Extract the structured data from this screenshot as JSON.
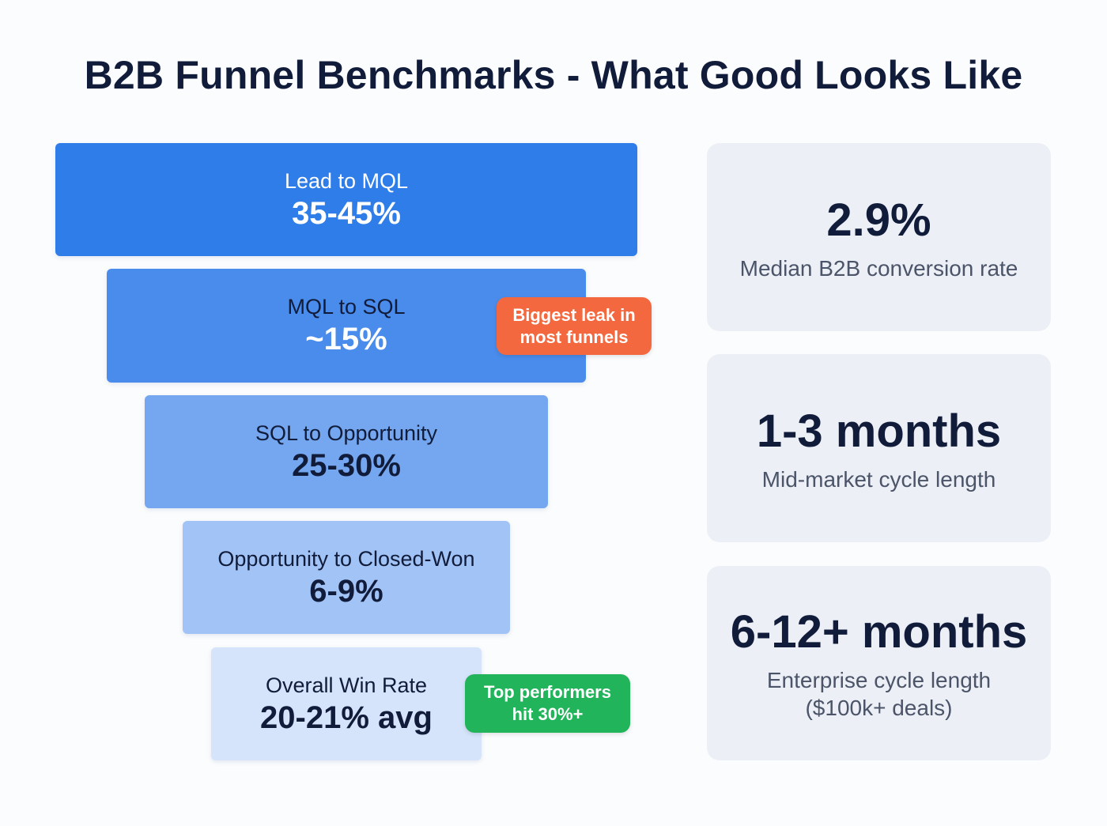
{
  "title": "B2B Funnel Benchmarks - What Good Looks Like",
  "funnel": [
    {
      "label": "Lead to MQL",
      "value": "35-45%",
      "color": "#2f7de8"
    },
    {
      "label": "MQL to SQL",
      "value": "~15%",
      "color": "#4a8cec"
    },
    {
      "label": "SQL to Opportunity",
      "value": "25-30%",
      "color": "#74a7f0"
    },
    {
      "label": "Opportunity to Closed-Won",
      "value": "6-9%",
      "color": "#a2c3f5"
    },
    {
      "label": "Overall Win Rate",
      "value": "20-21% avg",
      "color": "#d5e4fb"
    }
  ],
  "badges": {
    "leak": {
      "line1": "Biggest leak in",
      "line2": "most funnels",
      "color": "#f4683f"
    },
    "top": {
      "line1": "Top performers",
      "line2": "hit 30%+",
      "color": "#22b45a"
    }
  },
  "stats": [
    {
      "value": "2.9%",
      "caption": "Median B2B conversion rate"
    },
    {
      "value": "1-3 months",
      "caption": "Mid-market cycle length"
    },
    {
      "value": "6-12+ months",
      "caption": "Enterprise cycle length",
      "caption2": "($100k+ deals)"
    }
  ]
}
